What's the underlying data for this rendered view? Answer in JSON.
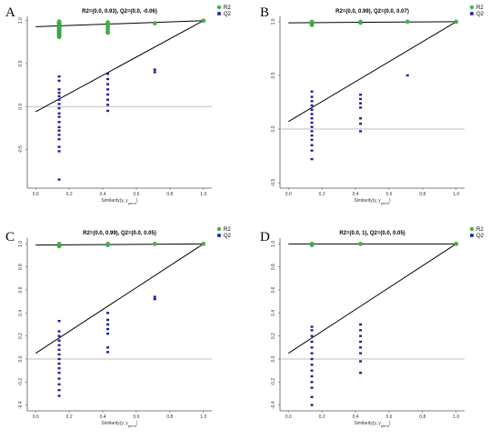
{
  "chart_data": [
    {
      "panel": "A",
      "type": "scatter",
      "title": "R2=(0.0, 0.93), Q2=(0.0, -0.06)",
      "xlabel": "Similarity(y, yperm)",
      "xlim": [
        -0.05,
        1.05
      ],
      "ylim": [
        -0.95,
        1.05
      ],
      "xticks": [
        0.0,
        0.2,
        0.4,
        0.6,
        0.8,
        1.0
      ],
      "yticks": [
        -0.5,
        0.0,
        0.5,
        1.0
      ],
      "legend": {
        "position": "top-right",
        "entries": [
          "R2",
          "Q2"
        ]
      },
      "colors": {
        "R2": "#41b449",
        "Q2": "#1f1f9b"
      },
      "series": [
        {
          "name": "R2",
          "marker": "circle",
          "points": [
            [
              0.14,
              0.81
            ],
            [
              0.14,
              0.82
            ],
            [
              0.14,
              0.83
            ],
            [
              0.14,
              0.84
            ],
            [
              0.14,
              0.85
            ],
            [
              0.14,
              0.86
            ],
            [
              0.14,
              0.87
            ],
            [
              0.14,
              0.88
            ],
            [
              0.14,
              0.89
            ],
            [
              0.14,
              0.9
            ],
            [
              0.14,
              0.91
            ],
            [
              0.14,
              0.92
            ],
            [
              0.14,
              0.93
            ],
            [
              0.14,
              0.94
            ],
            [
              0.14,
              0.95
            ],
            [
              0.14,
              0.96
            ],
            [
              0.14,
              0.97
            ],
            [
              0.14,
              0.98
            ],
            [
              0.14,
              0.99
            ],
            [
              0.43,
              0.86
            ],
            [
              0.43,
              0.87
            ],
            [
              0.43,
              0.9
            ],
            [
              0.43,
              0.93
            ],
            [
              0.43,
              0.96
            ],
            [
              0.43,
              0.98
            ],
            [
              0.71,
              0.97
            ],
            [
              1.0,
              1.0
            ]
          ]
        },
        {
          "name": "Q2",
          "marker": "square",
          "points": [
            [
              0.14,
              -0.85
            ],
            [
              0.14,
              -0.52
            ],
            [
              0.14,
              -0.47
            ],
            [
              0.14,
              -0.38
            ],
            [
              0.14,
              -0.33
            ],
            [
              0.14,
              -0.28
            ],
            [
              0.14,
              -0.24
            ],
            [
              0.14,
              -0.18
            ],
            [
              0.14,
              -0.12
            ],
            [
              0.14,
              -0.08
            ],
            [
              0.14,
              -0.02
            ],
            [
              0.14,
              0.03
            ],
            [
              0.14,
              0.08
            ],
            [
              0.14,
              0.12
            ],
            [
              0.14,
              0.16
            ],
            [
              0.14,
              0.2
            ],
            [
              0.14,
              0.3
            ],
            [
              0.14,
              0.35
            ],
            [
              0.43,
              -0.05
            ],
            [
              0.43,
              0.02
            ],
            [
              0.43,
              0.08
            ],
            [
              0.43,
              0.14
            ],
            [
              0.43,
              0.2
            ],
            [
              0.43,
              0.26
            ],
            [
              0.43,
              0.32
            ],
            [
              0.43,
              0.38
            ],
            [
              0.71,
              0.4
            ],
            [
              0.71,
              0.43
            ]
          ]
        }
      ],
      "regression_lines": [
        {
          "name": "R2",
          "from": [
            0.0,
            0.93
          ],
          "to": [
            1.0,
            1.0
          ]
        },
        {
          "name": "Q2",
          "from": [
            0.0,
            -0.06
          ],
          "to": [
            1.0,
            1.0
          ]
        }
      ]
    },
    {
      "panel": "B",
      "type": "scatter",
      "title": "R2=(0.0, 0.99), Q2=(0.0, 0.07)",
      "xlabel": "Similarity(y, yperm)",
      "xlim": [
        -0.05,
        1.05
      ],
      "ylim": [
        -0.55,
        1.05
      ],
      "xticks": [
        0.0,
        0.2,
        0.4,
        0.6,
        0.8,
        1.0
      ],
      "yticks": [
        -0.5,
        0.0,
        0.5,
        1.0
      ],
      "legend": {
        "position": "top-right",
        "entries": [
          "R2",
          "Q2"
        ]
      },
      "colors": {
        "R2": "#41b449",
        "Q2": "#1f1f9b"
      },
      "series": [
        {
          "name": "R2",
          "marker": "circle",
          "points": [
            [
              0.14,
              0.97
            ],
            [
              0.14,
              0.98
            ],
            [
              0.14,
              0.99
            ],
            [
              0.14,
              1.0
            ],
            [
              0.43,
              0.99
            ],
            [
              0.43,
              1.0
            ],
            [
              0.71,
              1.0
            ],
            [
              1.0,
              1.0
            ]
          ]
        },
        {
          "name": "Q2",
          "marker": "square",
          "points": [
            [
              0.14,
              -0.28
            ],
            [
              0.14,
              -0.2
            ],
            [
              0.14,
              -0.15
            ],
            [
              0.14,
              -0.1
            ],
            [
              0.14,
              -0.06
            ],
            [
              0.14,
              -0.02
            ],
            [
              0.14,
              0.02
            ],
            [
              0.14,
              0.06
            ],
            [
              0.14,
              0.1
            ],
            [
              0.14,
              0.14
            ],
            [
              0.14,
              0.18
            ],
            [
              0.14,
              0.22
            ],
            [
              0.14,
              0.26
            ],
            [
              0.14,
              0.3
            ],
            [
              0.14,
              0.35
            ],
            [
              0.43,
              -0.02
            ],
            [
              0.43,
              0.05
            ],
            [
              0.43,
              0.1
            ],
            [
              0.43,
              0.2
            ],
            [
              0.43,
              0.24
            ],
            [
              0.43,
              0.28
            ],
            [
              0.43,
              0.32
            ],
            [
              0.71,
              0.5
            ]
          ]
        }
      ],
      "regression_lines": [
        {
          "name": "R2",
          "from": [
            0.0,
            0.99
          ],
          "to": [
            1.0,
            1.0
          ]
        },
        {
          "name": "Q2",
          "from": [
            0.0,
            0.07
          ],
          "to": [
            1.0,
            1.0
          ]
        }
      ]
    },
    {
      "panel": "C",
      "type": "scatter",
      "title": "R2=(0.0, 0.99), Q2=(0.0, 0.05)",
      "xlabel": "Similarity(y, yperm)",
      "xlim": [
        -0.05,
        1.05
      ],
      "ylim": [
        -0.45,
        1.05
      ],
      "xticks": [
        0.0,
        0.2,
        0.4,
        0.6,
        0.8,
        1.0
      ],
      "yticks": [
        -0.4,
        -0.2,
        0.0,
        0.2,
        0.4,
        0.6,
        0.8,
        1.0
      ],
      "legend": {
        "position": "top-right",
        "entries": [
          "R2",
          "Q2"
        ]
      },
      "colors": {
        "R2": "#41b449",
        "Q2": "#1f1f9b"
      },
      "series": [
        {
          "name": "R2",
          "marker": "circle",
          "points": [
            [
              0.14,
              0.98
            ],
            [
              0.14,
              0.99
            ],
            [
              0.14,
              1.0
            ],
            [
              0.43,
              0.99
            ],
            [
              0.43,
              1.0
            ],
            [
              0.71,
              1.0
            ],
            [
              1.0,
              1.0
            ]
          ]
        },
        {
          "name": "Q2",
          "marker": "square",
          "points": [
            [
              0.14,
              -0.32
            ],
            [
              0.14,
              -0.27
            ],
            [
              0.14,
              -0.22
            ],
            [
              0.14,
              -0.17
            ],
            [
              0.14,
              -0.12
            ],
            [
              0.14,
              -0.08
            ],
            [
              0.14,
              -0.04
            ],
            [
              0.14,
              0.0
            ],
            [
              0.14,
              0.04
            ],
            [
              0.14,
              0.08
            ],
            [
              0.14,
              0.12
            ],
            [
              0.14,
              0.16
            ],
            [
              0.14,
              0.2
            ],
            [
              0.14,
              0.24
            ],
            [
              0.14,
              0.33
            ],
            [
              0.43,
              0.06
            ],
            [
              0.43,
              0.1
            ],
            [
              0.43,
              0.22
            ],
            [
              0.43,
              0.26
            ],
            [
              0.43,
              0.3
            ],
            [
              0.43,
              0.34
            ],
            [
              0.43,
              0.4
            ],
            [
              0.71,
              0.52
            ],
            [
              0.71,
              0.54
            ]
          ]
        }
      ],
      "regression_lines": [
        {
          "name": "R2",
          "from": [
            0.0,
            0.99
          ],
          "to": [
            1.0,
            1.0
          ]
        },
        {
          "name": "Q2",
          "from": [
            0.0,
            0.05
          ],
          "to": [
            1.0,
            1.0
          ]
        }
      ]
    },
    {
      "panel": "D",
      "type": "scatter",
      "title": "R2=(0.0, 1), Q2=(0.0, 0.05)",
      "xlabel": "Similarity(y, yperm)",
      "xlim": [
        -0.05,
        1.05
      ],
      "ylim": [
        -0.45,
        1.05
      ],
      "xticks": [
        0.0,
        0.2,
        0.4,
        0.6,
        0.8,
        1.0
      ],
      "yticks": [
        -0.4,
        -0.2,
        0.0,
        0.2,
        0.4,
        0.6,
        0.8,
        1.0
      ],
      "legend": {
        "position": "top-right",
        "entries": [
          "R2",
          "Q2"
        ]
      },
      "colors": {
        "R2": "#41b449",
        "Q2": "#1f1f9b"
      },
      "series": [
        {
          "name": "R2",
          "marker": "circle",
          "points": [
            [
              0.14,
              0.99
            ],
            [
              0.14,
              1.0
            ],
            [
              0.43,
              1.0
            ],
            [
              1.0,
              1.0
            ]
          ]
        },
        {
          "name": "Q2",
          "marker": "square",
          "points": [
            [
              0.14,
              -0.4
            ],
            [
              0.14,
              -0.33
            ],
            [
              0.14,
              -0.25
            ],
            [
              0.14,
              -0.2
            ],
            [
              0.14,
              -0.15
            ],
            [
              0.14,
              -0.1
            ],
            [
              0.14,
              -0.05
            ],
            [
              0.14,
              0.0
            ],
            [
              0.14,
              0.05
            ],
            [
              0.14,
              0.1
            ],
            [
              0.14,
              0.15
            ],
            [
              0.14,
              0.2
            ],
            [
              0.14,
              0.25
            ],
            [
              0.14,
              0.28
            ],
            [
              0.43,
              -0.12
            ],
            [
              0.43,
              -0.02
            ],
            [
              0.43,
              0.05
            ],
            [
              0.43,
              0.1
            ],
            [
              0.43,
              0.15
            ],
            [
              0.43,
              0.2
            ],
            [
              0.43,
              0.25
            ],
            [
              0.43,
              0.3
            ]
          ]
        }
      ],
      "regression_lines": [
        {
          "name": "R2",
          "from": [
            0.0,
            1.0
          ],
          "to": [
            1.0,
            1.0
          ]
        },
        {
          "name": "Q2",
          "from": [
            0.0,
            0.05
          ],
          "to": [
            1.0,
            1.0
          ]
        }
      ]
    }
  ]
}
